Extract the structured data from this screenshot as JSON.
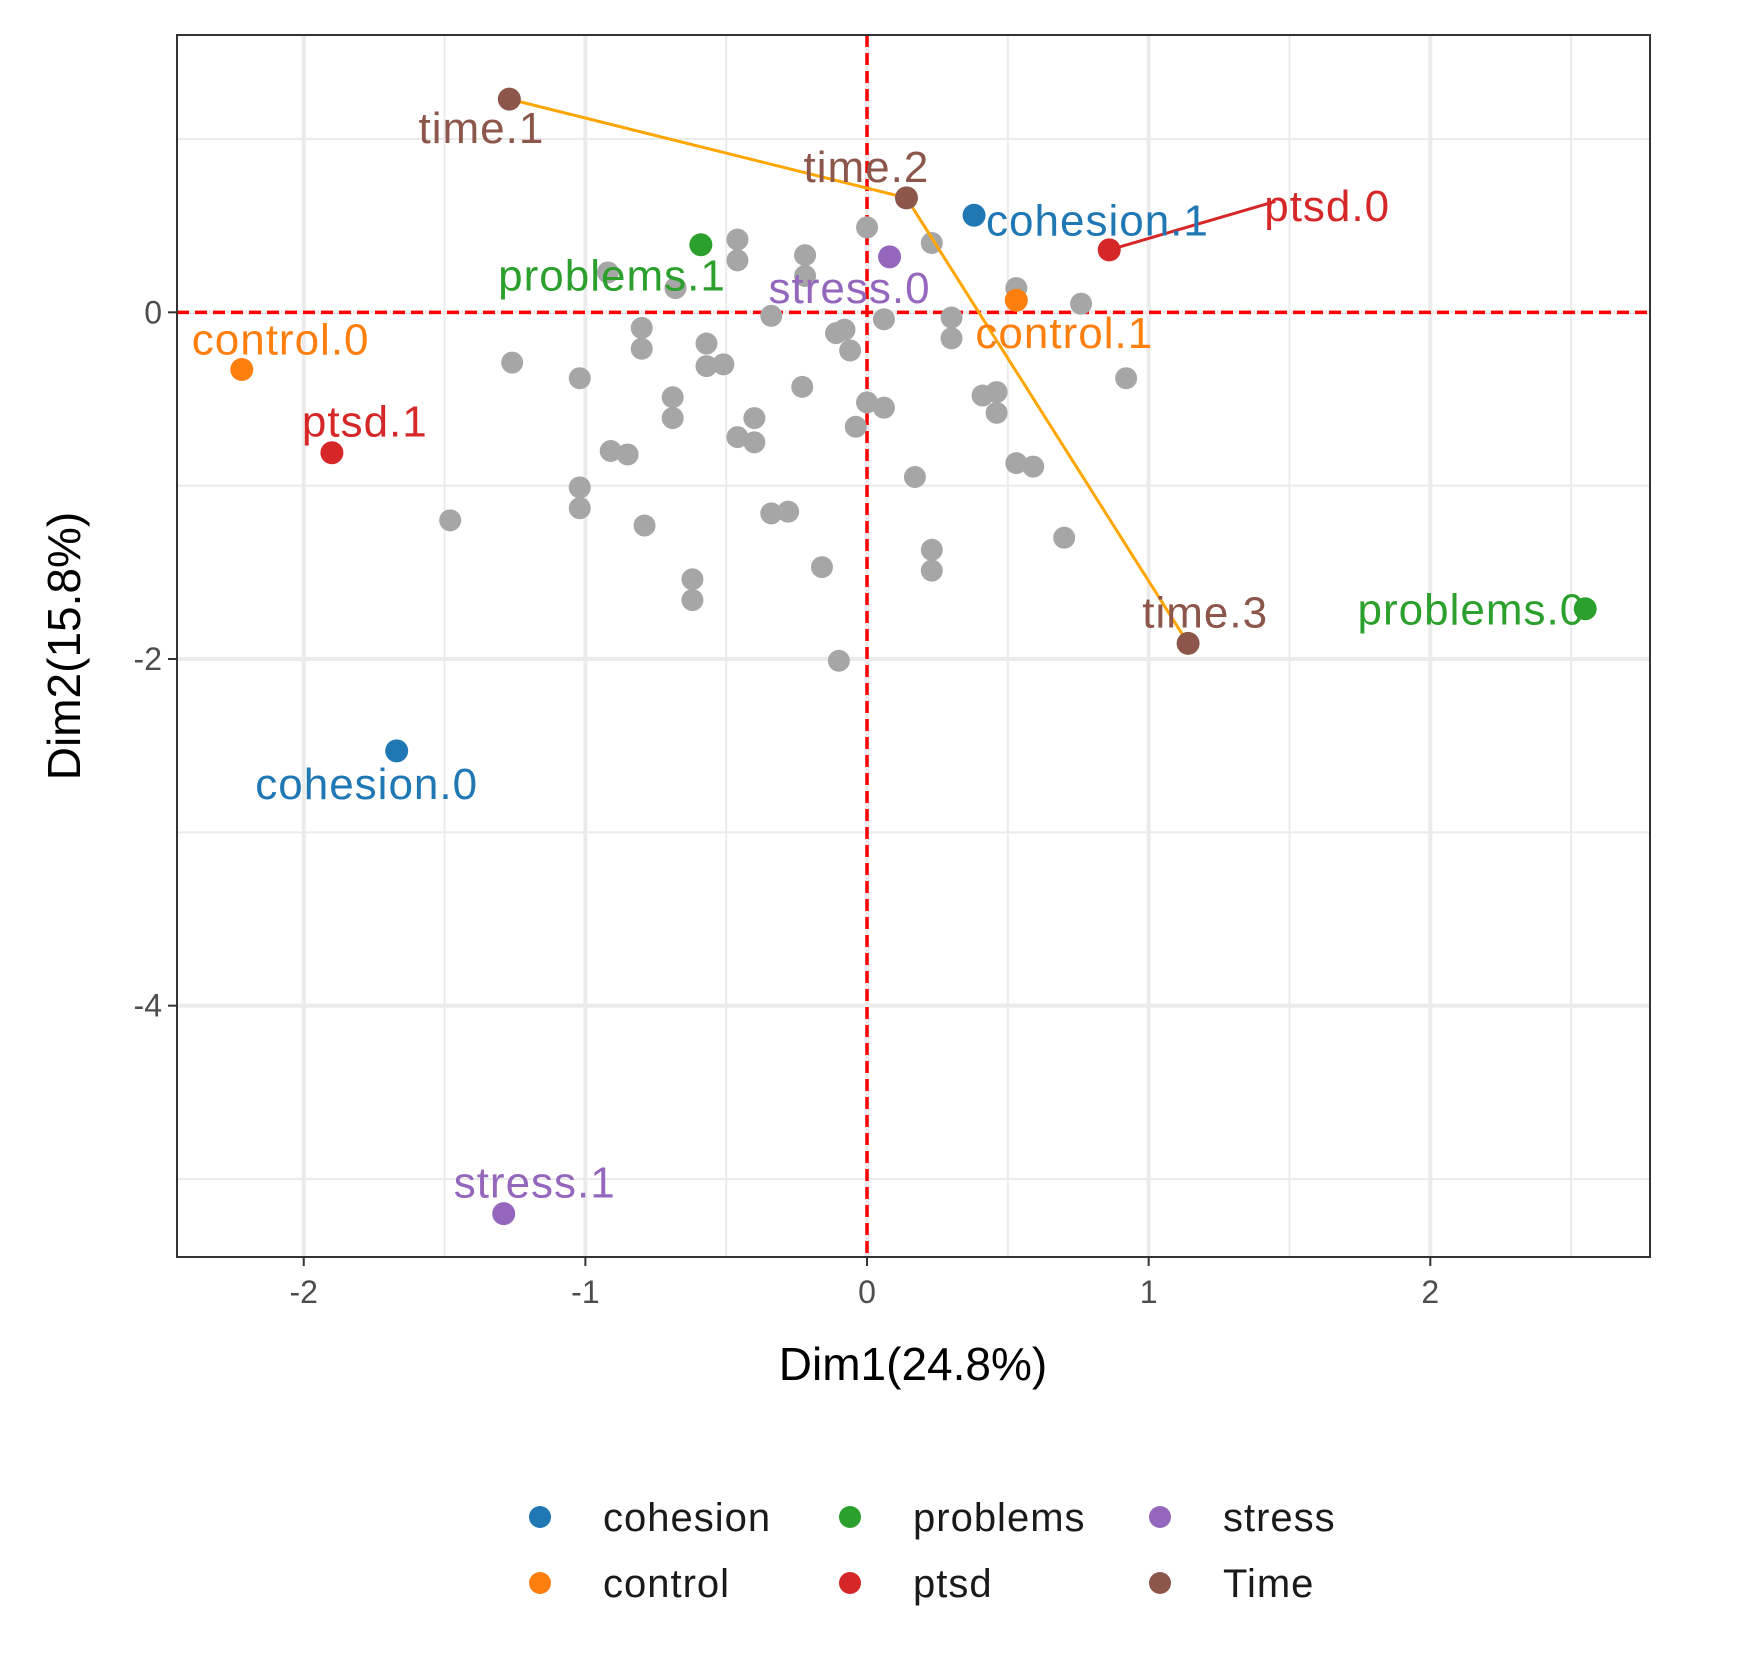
{
  "chart_data": {
    "type": "scatter",
    "xlabel": "Dim1(24.8%)",
    "ylabel": "Dim2(15.8%)",
    "xlim": [
      -2.45,
      2.78
    ],
    "ylim": [
      -5.45,
      1.6
    ],
    "x_ticks": [
      -2,
      -1,
      0,
      1,
      2
    ],
    "y_ticks": [
      0,
      -2,
      -4
    ],
    "grid": true,
    "reference_lines": {
      "x": 0,
      "y": 0,
      "color": "#ff0000",
      "style": "dashed"
    },
    "colors": {
      "cohesion": "#1f77b4",
      "control": "#ff7f0e",
      "problems": "#2ca02c",
      "ptsd": "#d62728",
      "stress": "#9467bd",
      "Time": "#8c564b",
      "individuals": "#a6a6a6",
      "arrows": "#ffa500"
    },
    "categories": [
      {
        "label": "time.1",
        "group": "Time",
        "x": -1.27,
        "y": 1.23,
        "label_anchor": "end",
        "label_dx": 35,
        "label_dy": 44
      },
      {
        "label": "time.2",
        "group": "Time",
        "x": 0.14,
        "y": 0.66,
        "label_anchor": "middle",
        "label_dx": -40,
        "label_dy": -16
      },
      {
        "label": "time.3",
        "group": "Time",
        "x": 1.14,
        "y": -1.91,
        "label_anchor": "end",
        "label_dx": 80,
        "label_dy": -16
      },
      {
        "label": "cohesion.1",
        "group": "cohesion",
        "x": 0.38,
        "y": 0.56,
        "label_anchor": "start",
        "label_dx": 12,
        "label_dy": 20
      },
      {
        "label": "cohesion.0",
        "group": "cohesion",
        "x": -1.67,
        "y": -2.53,
        "label_anchor": "middle",
        "label_dx": -30,
        "label_dy": 48
      },
      {
        "label": "ptsd.0",
        "group": "ptsd",
        "x": 0.86,
        "y": 0.36,
        "label_anchor": "start",
        "label_dx": 155,
        "label_dy": -29
      },
      {
        "label": "ptsd.1",
        "group": "ptsd",
        "x": -1.9,
        "y": -0.81,
        "label_anchor": "start",
        "label_dx": -30,
        "label_dy": -16
      },
      {
        "label": "problems.1",
        "group": "problems",
        "x": -0.59,
        "y": 0.39,
        "label_anchor": "end",
        "label_dx": 25,
        "label_dy": 46
      },
      {
        "label": "problems.0",
        "group": "problems",
        "x": 2.55,
        "y": -1.71,
        "label_anchor": "end",
        "label_dx": 0,
        "label_dy": 16
      },
      {
        "label": "stress.0",
        "group": "stress",
        "x": 0.08,
        "y": 0.32,
        "label_anchor": "middle",
        "label_dx": -40,
        "label_dy": 46
      },
      {
        "label": "stress.1",
        "group": "stress",
        "x": -1.29,
        "y": -5.2,
        "label_anchor": "start",
        "label_dx": -50,
        "label_dy": -16
      },
      {
        "label": "control.1",
        "group": "control",
        "x": 0.53,
        "y": 0.07,
        "label_anchor": "middle",
        "label_dx": 48,
        "label_dy": 48
      },
      {
        "label": "control.0",
        "group": "control",
        "x": -2.22,
        "y": -0.33,
        "label_anchor": "start",
        "label_dx": -50,
        "label_dy": -15
      }
    ],
    "arrows": [
      {
        "from": [
          -1.27,
          1.23
        ],
        "to": [
          0.14,
          0.66
        ],
        "color": "#ffa500"
      },
      {
        "from": [
          0.14,
          0.66
        ],
        "to": [
          1.14,
          -1.91
        ],
        "color": "#ffa500"
      },
      {
        "from": [
          0.86,
          0.36
        ],
        "to": [
          1.45,
          0.64
        ],
        "color": "#d62728"
      }
    ],
    "individuals": [
      [
        -0.92,
        0.23
      ],
      [
        -0.46,
        0.42
      ],
      [
        -0.46,
        0.3
      ],
      [
        -0.22,
        0.33
      ],
      [
        -0.22,
        0.21
      ],
      [
        -0.68,
        0.14
      ],
      [
        0.0,
        0.49
      ],
      [
        0.23,
        0.4
      ],
      [
        0.53,
        0.14
      ],
      [
        0.76,
        0.05
      ],
      [
        -0.34,
        -0.02
      ],
      [
        0.06,
        -0.04
      ],
      [
        0.3,
        -0.03
      ],
      [
        0.3,
        -0.15
      ],
      [
        -0.8,
        -0.09
      ],
      [
        -0.8,
        -0.21
      ],
      [
        -0.57,
        -0.18
      ],
      [
        -0.57,
        -0.31
      ],
      [
        -0.51,
        -0.3
      ],
      [
        -0.11,
        -0.12
      ],
      [
        -0.08,
        -0.1
      ],
      [
        -0.06,
        -0.22
      ],
      [
        -1.26,
        -0.29
      ],
      [
        -1.02,
        -0.38
      ],
      [
        -0.23,
        -0.43
      ],
      [
        0.41,
        -0.48
      ],
      [
        0.46,
        -0.46
      ],
      [
        0.46,
        -0.58
      ],
      [
        0.92,
        -0.38
      ],
      [
        -0.69,
        -0.49
      ],
      [
        -0.69,
        -0.61
      ],
      [
        -0.4,
        -0.61
      ],
      [
        -0.46,
        -0.72
      ],
      [
        -0.4,
        -0.75
      ],
      [
        0.0,
        -0.52
      ],
      [
        0.06,
        -0.55
      ],
      [
        -0.04,
        -0.66
      ],
      [
        -0.91,
        -0.8
      ],
      [
        -0.85,
        -0.82
      ],
      [
        0.53,
        -0.87
      ],
      [
        0.59,
        -0.89
      ],
      [
        0.17,
        -0.95
      ],
      [
        -1.02,
        -1.01
      ],
      [
        -1.02,
        -1.13
      ],
      [
        -0.34,
        -1.16
      ],
      [
        -0.28,
        -1.15
      ],
      [
        -1.48,
        -1.2
      ],
      [
        -0.79,
        -1.23
      ],
      [
        0.7,
        -1.3
      ],
      [
        0.23,
        -1.37
      ],
      [
        0.23,
        -1.49
      ],
      [
        -0.16,
        -1.47
      ],
      [
        -0.62,
        -1.54
      ],
      [
        -0.62,
        -1.66
      ],
      [
        -0.1,
        -2.01
      ]
    ],
    "legend": {
      "placement": "bottom",
      "entries": [
        {
          "name": "cohesion",
          "color": "#1f77b4"
        },
        {
          "name": "control",
          "color": "#ff7f0e"
        },
        {
          "name": "problems",
          "color": "#2ca02c"
        },
        {
          "name": "ptsd",
          "color": "#d62728"
        },
        {
          "name": "stress",
          "color": "#9467bd"
        },
        {
          "name": "Time",
          "color": "#8c564b"
        }
      ]
    }
  }
}
